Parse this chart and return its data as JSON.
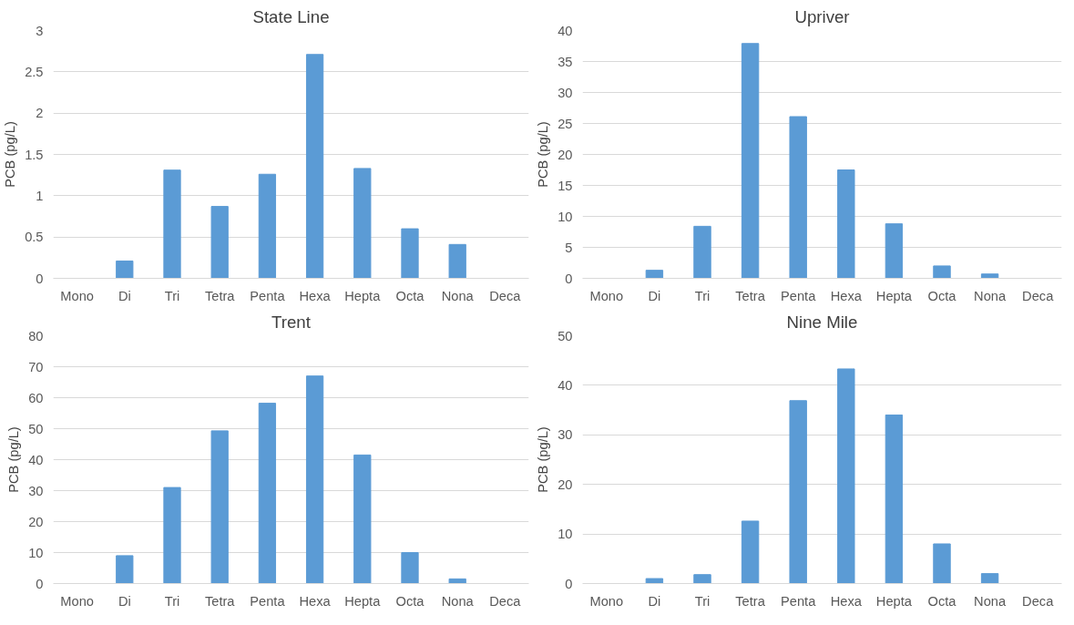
{
  "chart_data": [
    {
      "type": "bar",
      "title": "State Line",
      "ylabel": "PCB (pg/L)",
      "categories": [
        "Mono",
        "Di",
        "Tri",
        "Tetra",
        "Penta",
        "Hexa",
        "Hepta",
        "Octa",
        "Nona",
        "Deca"
      ],
      "values": [
        0,
        0.21,
        1.31,
        0.87,
        1.26,
        2.71,
        1.33,
        0.6,
        0.41,
        0
      ],
      "color": "#5b9bd5",
      "ylim": [
        0,
        3
      ],
      "yticks": [
        0,
        0.5,
        1,
        1.5,
        2,
        2.5,
        3
      ],
      "grid": "y"
    },
    {
      "type": "bar",
      "title": "Upriver",
      "ylabel": "PCB (pg/L)",
      "categories": [
        "Mono",
        "Di",
        "Tri",
        "Tetra",
        "Penta",
        "Hexa",
        "Hepta",
        "Octa",
        "Nona",
        "Deca"
      ],
      "values": [
        0,
        1.3,
        8.4,
        37.9,
        26.1,
        17.5,
        8.8,
        2,
        0.7,
        0
      ],
      "color": "#5b9bd5",
      "ylim": [
        0,
        40
      ],
      "yticks": [
        0,
        5,
        10,
        15,
        20,
        25,
        30,
        35,
        40
      ],
      "grid": "y"
    },
    {
      "type": "bar",
      "title": "Trent",
      "ylabel": "PCB (pg/L)",
      "categories": [
        "Mono",
        "Di",
        "Tri",
        "Tetra",
        "Penta",
        "Hexa",
        "Hepta",
        "Octa",
        "Nona",
        "Deca"
      ],
      "values": [
        0,
        9,
        31,
        49.3,
        58.2,
        67,
        41.5,
        10,
        1.5,
        0
      ],
      "color": "#5b9bd5",
      "ylim": [
        0,
        80
      ],
      "yticks": [
        0,
        10,
        20,
        30,
        40,
        50,
        60,
        70,
        80
      ],
      "grid": "y"
    },
    {
      "type": "bar",
      "title": "Nine Mile",
      "ylabel": "PCB (pg/L)",
      "categories": [
        "Mono",
        "Di",
        "Tri",
        "Tetra",
        "Penta",
        "Hexa",
        "Hepta",
        "Octa",
        "Nona",
        "Deca"
      ],
      "values": [
        0,
        1,
        1.8,
        12.6,
        36.9,
        43.3,
        34,
        8,
        2,
        0
      ],
      "color": "#5b9bd5",
      "ylim": [
        0,
        50
      ],
      "yticks": [
        0,
        10,
        20,
        30,
        40,
        50
      ],
      "grid": "y"
    }
  ]
}
